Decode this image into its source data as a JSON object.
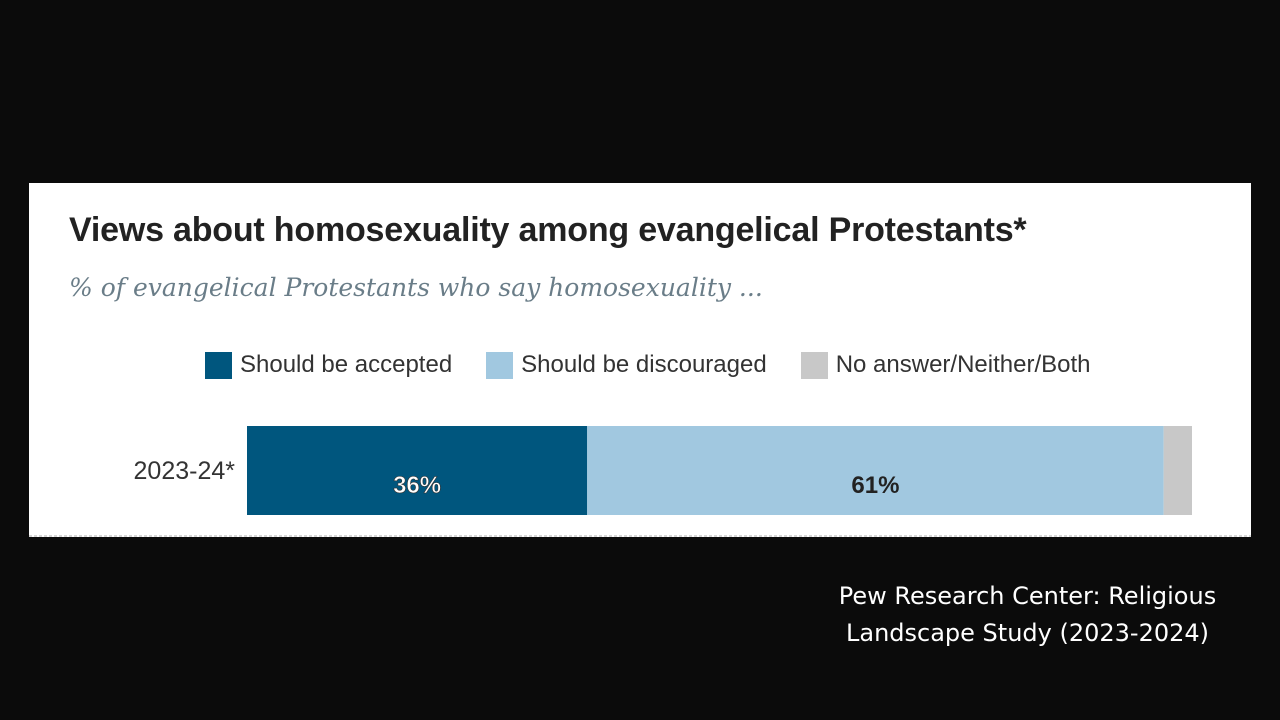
{
  "chart_data": {
    "type": "bar",
    "orientation": "horizontal",
    "stacked": true,
    "title": "Views about homosexuality among evangelical Protestants*",
    "subtitle": "% of evangelical Protestants who say homosexuality ...",
    "categories": [
      "2023-24*"
    ],
    "series": [
      {
        "name": "Should be accepted",
        "values": [
          36
        ],
        "label": "36%",
        "color": "#00567e"
      },
      {
        "name": "Should be discouraged",
        "values": [
          61
        ],
        "label": "61%",
        "color": "#a1c8e0"
      },
      {
        "name": "No answer/Neither/Both",
        "values": [
          3
        ],
        "label": "",
        "color": "#c8c8c8"
      }
    ],
    "xlim": [
      0,
      100
    ],
    "legend_position": "top"
  },
  "caption": {
    "line1": "Pew Research Center: Religious",
    "line2": "Landscape Study (2023-2024)"
  },
  "colors": {
    "background": "#0b0b0b",
    "panel": "#ffffff",
    "title": "#222222",
    "subtitle": "#6a7d88"
  }
}
